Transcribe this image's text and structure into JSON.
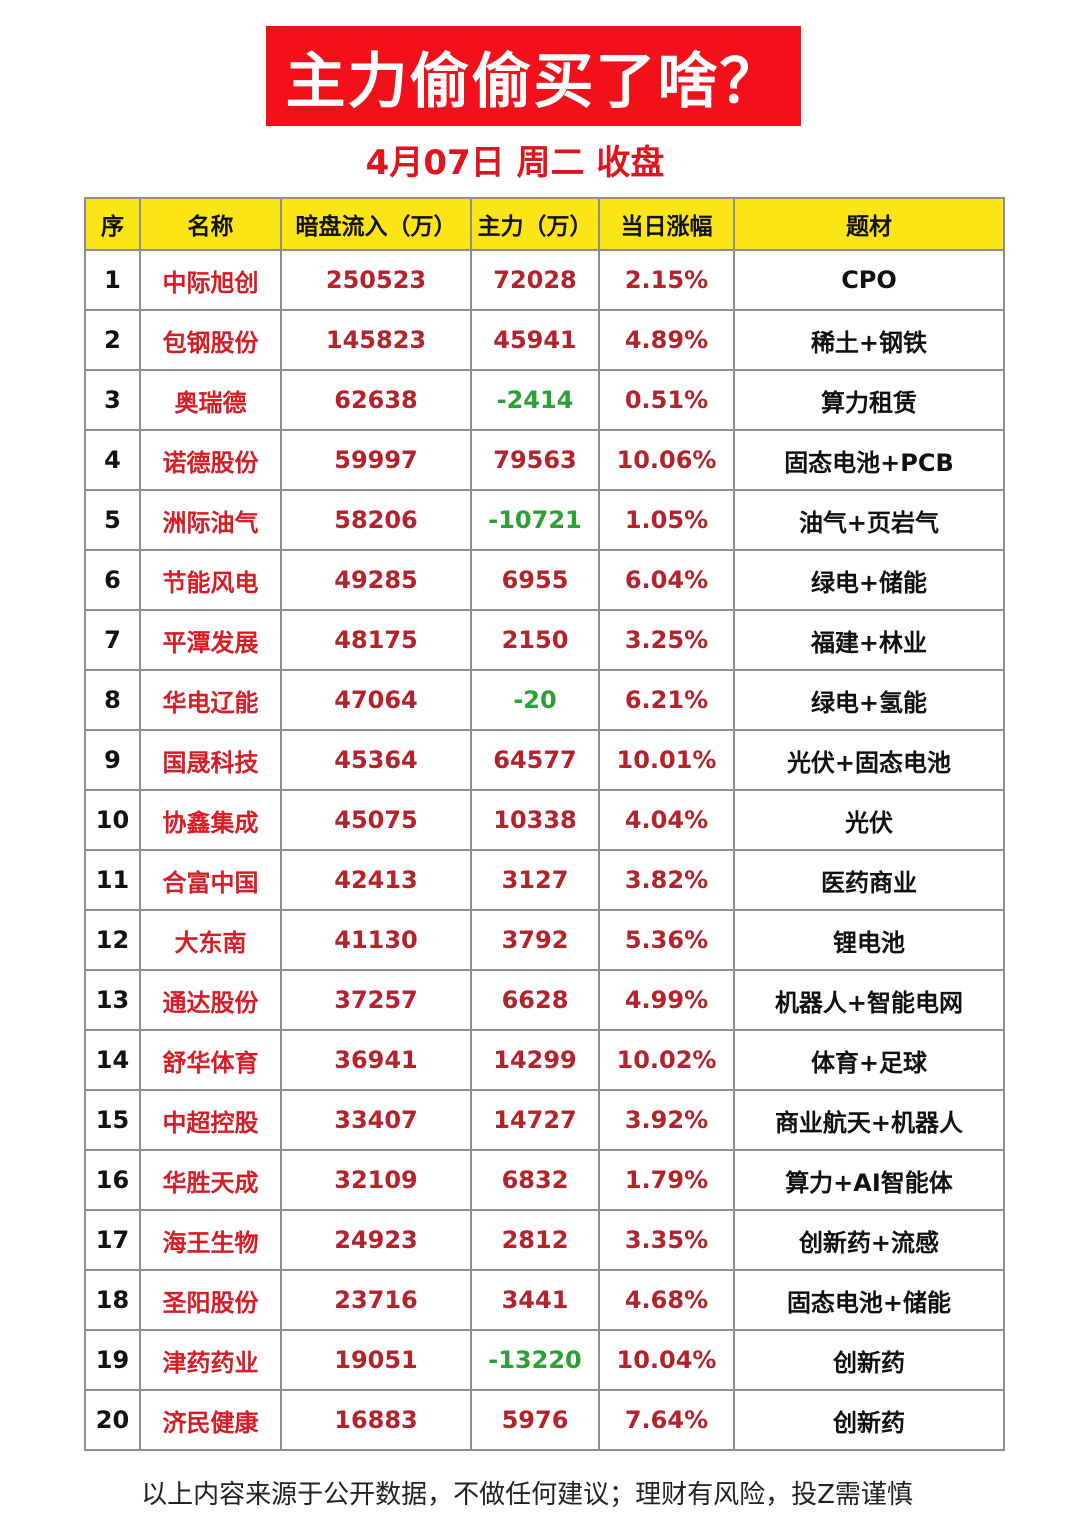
{
  "title": "主力偷偷买了啥？",
  "subtitle": "4月07日 周二 收盘",
  "headers": [
    "序",
    "名称",
    "暗盘流入（万）",
    "主力（万）",
    "当日涨幅",
    "题材"
  ],
  "rows": [
    {
      "rank": "1",
      "name": "中际旭创",
      "dark": "250523",
      "main": "72028",
      "change": "2.15%",
      "theme": "CPO"
    },
    {
      "rank": "2",
      "name": "包钢股份",
      "dark": "145823",
      "main": "45941",
      "change": "4.89%",
      "theme": "稀土+钢铁"
    },
    {
      "rank": "3",
      "name": "奥瑞德",
      "dark": "62638",
      "main": "-2414",
      "change": "0.51%",
      "theme": "算力租赁"
    },
    {
      "rank": "4",
      "name": "诺德股份",
      "dark": "59997",
      "main": "79563",
      "change": "10.06%",
      "theme": "固态电池+PCB"
    },
    {
      "rank": "5",
      "name": "洲际油气",
      "dark": "58206",
      "main": "-10721",
      "change": "1.05%",
      "theme": "油气+页岩气"
    },
    {
      "rank": "6",
      "name": "节能风电",
      "dark": "49285",
      "main": "6955",
      "change": "6.04%",
      "theme": "绿电+储能"
    },
    {
      "rank": "7",
      "name": "平潭发展",
      "dark": "48175",
      "main": "2150",
      "change": "3.25%",
      "theme": "福建+林业"
    },
    {
      "rank": "8",
      "name": "华电辽能",
      "dark": "47064",
      "main": "-20",
      "change": "6.21%",
      "theme": "绿电+氢能"
    },
    {
      "rank": "9",
      "name": "国晟科技",
      "dark": "45364",
      "main": "64577",
      "change": "10.01%",
      "theme": "光伏+固态电池"
    },
    {
      "rank": "10",
      "name": "协鑫集成",
      "dark": "45075",
      "main": "10338",
      "change": "4.04%",
      "theme": "光伏"
    },
    {
      "rank": "11",
      "name": "合富中国",
      "dark": "42413",
      "main": "3127",
      "change": "3.82%",
      "theme": "医药商业"
    },
    {
      "rank": "12",
      "name": "大东南",
      "dark": "41130",
      "main": "3792",
      "change": "5.36%",
      "theme": "锂电池"
    },
    {
      "rank": "13",
      "name": "通达股份",
      "dark": "37257",
      "main": "6628",
      "change": "4.99%",
      "theme": "机器人+智能电网"
    },
    {
      "rank": "14",
      "name": "舒华体育",
      "dark": "36941",
      "main": "14299",
      "change": "10.02%",
      "theme": "体育+足球"
    },
    {
      "rank": "15",
      "name": "中超控股",
      "dark": "33407",
      "main": "14727",
      "change": "3.92%",
      "theme": "商业航天+机器人"
    },
    {
      "rank": "16",
      "name": "华胜天成",
      "dark": "32109",
      "main": "6832",
      "change": "1.79%",
      "theme": "算力+AI智能体"
    },
    {
      "rank": "17",
      "name": "海王生物",
      "dark": "24923",
      "main": "2812",
      "change": "3.35%",
      "theme": "创新药+流感"
    },
    {
      "rank": "18",
      "name": "圣阳股份",
      "dark": "23716",
      "main": "3441",
      "change": "4.68%",
      "theme": "固态电池+储能"
    },
    {
      "rank": "19",
      "name": "津药药业",
      "dark": "19051",
      "main": "-13220",
      "change": "10.04%",
      "theme": "创新药"
    },
    {
      "rank": "20",
      "name": "济民健康",
      "dark": "16883",
      "main": "5976",
      "change": "7.64%",
      "theme": "创新药"
    }
  ],
  "disclaimer": "以上内容来源于公开数据，不做任何建议；理财有风险，投Z需谨慎",
  "colors": {
    "banner": "#f2111b",
    "header_bg": "#fce516",
    "name_red": "#d71c26",
    "value_red": "#b4232b",
    "negative_green": "#2ba034"
  }
}
